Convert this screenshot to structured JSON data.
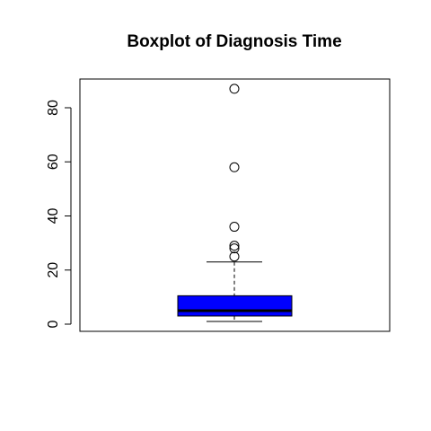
{
  "chart_data": {
    "type": "boxplot",
    "title": "Boxplot of Diagnosis Time",
    "xlabel": "",
    "ylabel": "",
    "ylim": [
      -2,
      90
    ],
    "yticks": [
      0,
      20,
      40,
      60,
      80
    ],
    "box": {
      "min": 1,
      "q1": 3,
      "median": 5,
      "q3": 10.5,
      "whisker_high": 23,
      "outliers": [
        25,
        28,
        29,
        36,
        58,
        87
      ]
    },
    "colors": {
      "box_fill": "#0000ff",
      "stroke": "#000000",
      "outlier_stroke": "#000000"
    },
    "grid": false,
    "legend": "none"
  }
}
